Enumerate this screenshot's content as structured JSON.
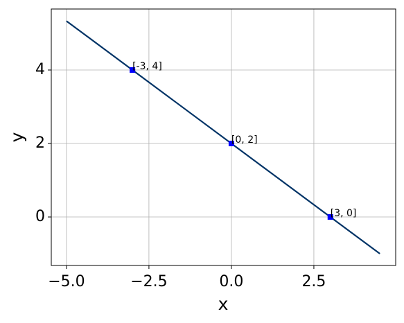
{
  "chart_data": {
    "type": "line",
    "xlabel": "x",
    "ylabel": "y",
    "xlim": [
      -5.46,
      4.98
    ],
    "ylim": [
      -1.32,
      5.66
    ],
    "xticks": [
      {
        "value": -5,
        "label": "−5.0"
      },
      {
        "value": -2.5,
        "label": "−2.5"
      },
      {
        "value": 0,
        "label": "0.0"
      },
      {
        "value": 2.5,
        "label": "2.5"
      }
    ],
    "yticks": [
      0,
      2,
      4
    ],
    "grid": true,
    "series": [
      {
        "color": "#003366",
        "x": [
          -5,
          4.5
        ],
        "values": [
          5.333,
          -1
        ]
      }
    ],
    "points": {
      "color": "#0000ff",
      "marker": "square",
      "x": [
        -3,
        0,
        3
      ],
      "values": [
        4,
        2,
        0
      ],
      "labels": [
        "[-3, 4]",
        "[0, 2]",
        "[3, 0]"
      ]
    }
  }
}
